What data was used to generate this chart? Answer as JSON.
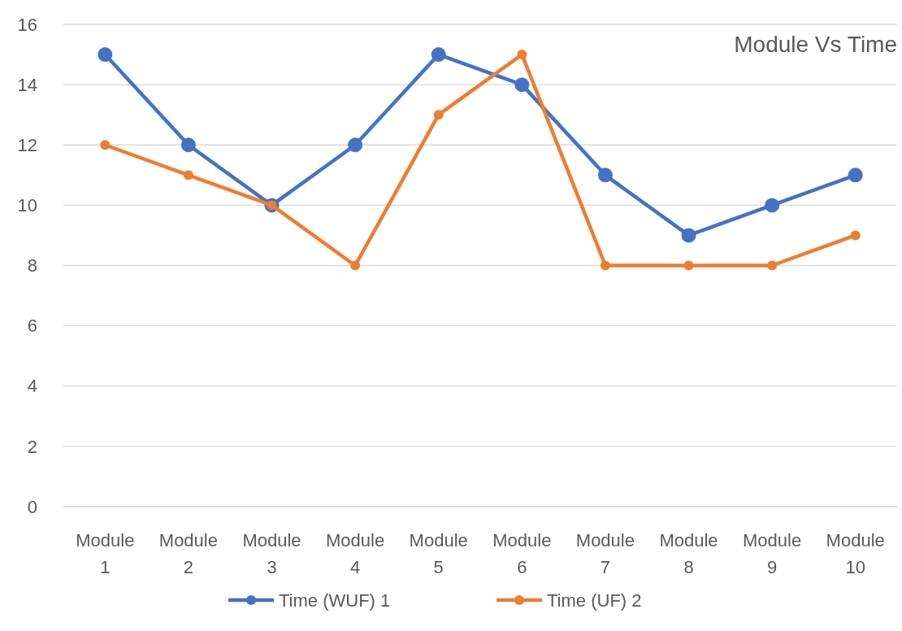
{
  "chart_data": {
    "type": "line",
    "title": "Module Vs Time",
    "categories": [
      "Module 1",
      "Module 2",
      "Module 3",
      "Module 4",
      "Module 5",
      "Module 6",
      "Module 7",
      "Module 8",
      "Module 9",
      "Module 10"
    ],
    "series": [
      {
        "name": "Time (WUF) 1",
        "color": "#4472c4",
        "values": [
          15,
          12,
          10,
          12,
          15,
          14,
          11,
          9,
          10,
          11
        ]
      },
      {
        "name": "Time (UF) 2",
        "color": "#ed7d31",
        "values": [
          12,
          11,
          10,
          8,
          13,
          15,
          8,
          8,
          8,
          9
        ]
      }
    ],
    "ylim": [
      0,
      16
    ],
    "yticks": [
      0,
      2,
      4,
      6,
      8,
      10,
      12,
      14,
      16
    ],
    "grid": "y",
    "legend": "bottom",
    "marker": "circle"
  }
}
